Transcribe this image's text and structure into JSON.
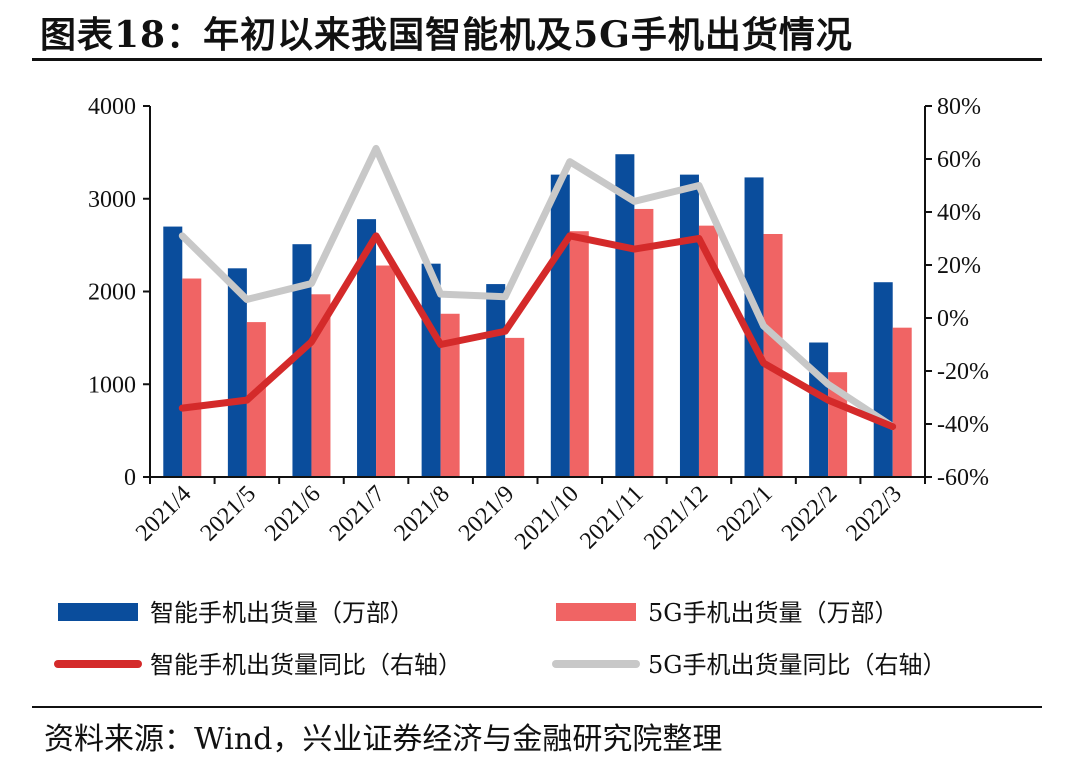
{
  "title": "图表18：年初以来我国智能机及5G手机出货情况",
  "source": "资料来源：Wind，兴业证券经济与金融研究院整理",
  "colors": {
    "smartphone_bar": "#0a4d9c",
    "g5_bar": "#f06464",
    "smartphone_yoy": "#d42a2a",
    "g5_yoy": "#c8c8c8"
  },
  "chart_data": {
    "type": "bar",
    "categories": [
      "2021/4",
      "2021/5",
      "2021/6",
      "2021/7",
      "2021/8",
      "2021/9",
      "2021/10",
      "2021/11",
      "2021/12",
      "2022/1",
      "2022/2",
      "2022/3"
    ],
    "left_axis": {
      "ylim": [
        0,
        4000
      ],
      "ticks": [
        "0",
        "1000",
        "2000",
        "3000",
        "4000"
      ]
    },
    "right_axis": {
      "ylim": [
        -60,
        80
      ],
      "ticks": [
        "-60%",
        "-40%",
        "-20%",
        "0%",
        "20%",
        "40%",
        "60%",
        "80%"
      ]
    },
    "series": [
      {
        "name": "智能手机出货量（万部）",
        "kind": "bar",
        "axis": "left",
        "values": [
          2700,
          2250,
          2510,
          2780,
          2300,
          2080,
          3260,
          3480,
          3260,
          3230,
          1450,
          2100
        ]
      },
      {
        "name": "5G手机出货量（万部）",
        "kind": "bar",
        "axis": "left",
        "values": [
          2140,
          1670,
          1970,
          2280,
          1760,
          1500,
          2650,
          2890,
          2710,
          2620,
          1130,
          1610
        ]
      },
      {
        "name": "智能手机出货量同比（右轴）",
        "kind": "line",
        "axis": "right",
        "values": [
          -34,
          -31,
          -9,
          31,
          -10,
          -5,
          31,
          26,
          30,
          -17,
          -31,
          -41
        ]
      },
      {
        "name": "5G手机出货量同比（右轴）",
        "kind": "line",
        "axis": "right",
        "values": [
          31,
          7,
          13,
          64,
          9,
          8,
          59,
          44,
          50,
          -3,
          -25,
          -41
        ]
      }
    ]
  }
}
